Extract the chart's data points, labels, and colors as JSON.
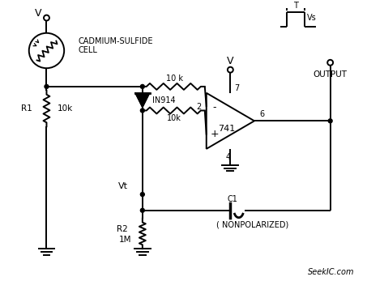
{
  "bg_color": "#ffffff",
  "line_color": "#000000",
  "watermark": "SeekIC.com",
  "labels": {
    "V_top_left": "V",
    "cds_cell_line1": "CADMIUM-SULFIDE",
    "cds_cell_line2": "CELL",
    "R1_label": "R1",
    "R1_val": "10k",
    "V_mid": "V",
    "IN914": "IN914",
    "R2_label": "R2",
    "R2_val": "1M",
    "Vt": "Vt",
    "res1_val": "10 k",
    "res2_val": "10k",
    "C1_val": "C1",
    "nonpol": "( NONPOLARIZED)",
    "opamp_label": "741",
    "pin2": "2",
    "pin4": "4",
    "pin6": "6",
    "pin7": "7",
    "minus": "-",
    "plus": "+",
    "T_label": "T",
    "Vs_label": "Vs",
    "output_label": "OUTPUT"
  }
}
